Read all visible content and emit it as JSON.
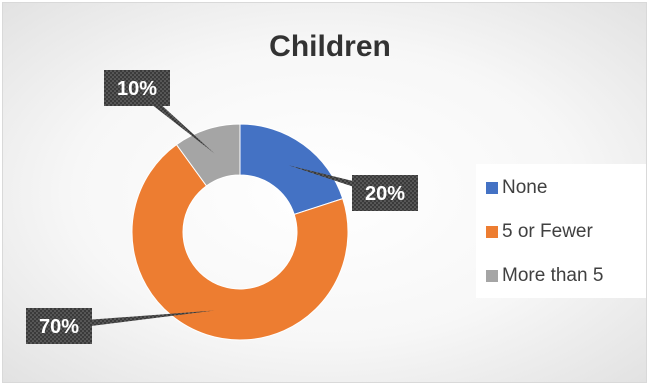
{
  "chart_data": {
    "type": "pie",
    "variant": "doughnut",
    "title": "Children",
    "categories": [
      "None",
      "5 or Fewer",
      "More than 5"
    ],
    "values": [
      20,
      70,
      10
    ],
    "data_labels": [
      "20%",
      "70%",
      "10%"
    ],
    "colors": [
      "#4472C4",
      "#ED7D31",
      "#A5A5A5"
    ],
    "legend_position": "right"
  }
}
